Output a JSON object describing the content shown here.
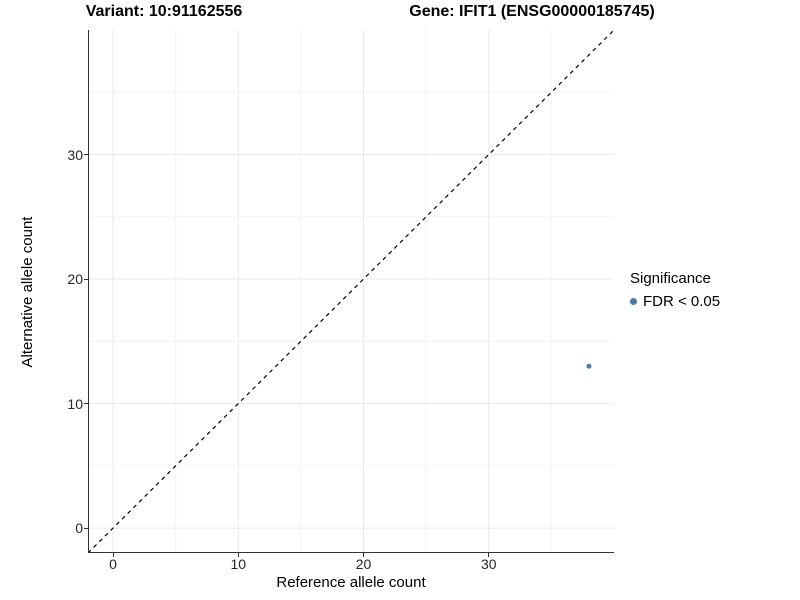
{
  "titles": {
    "left": "Variant: 10:91162556",
    "right": "Gene: IFIT1 (ENSG00000185745)"
  },
  "chart_data": {
    "type": "scatter",
    "title": "Variant: 10:91162556  /  Gene: IFIT1 (ENSG00000185745)",
    "xlabel": "Reference allele count",
    "ylabel": "Alternative allele count",
    "xlim": [
      -2,
      40
    ],
    "ylim": [
      -2,
      40
    ],
    "x_ticks": [
      0,
      10,
      20,
      30
    ],
    "y_ticks": [
      0,
      10,
      20,
      30
    ],
    "x_minor_ticks": [
      5,
      15,
      25,
      35
    ],
    "y_minor_ticks": [
      5,
      15,
      25,
      35
    ],
    "grid": true,
    "points": [
      {
        "x": 38,
        "y": 13,
        "series": "FDR < 0.05",
        "color": "#4e79a7",
        "radius": 2.5
      }
    ],
    "reference_line": {
      "slope": 1,
      "intercept": 0,
      "style": "dashed",
      "color": "#000000"
    },
    "legend": {
      "title": "Significance",
      "position": "right",
      "entries": [
        {
          "label": "FDR < 0.05",
          "color": "#4e79a7"
        }
      ]
    }
  },
  "colors": {
    "axis_line": "#333333",
    "tick_label": "#262626",
    "grid_major": "#e8e8e8",
    "grid_minor": "#f3f3f3",
    "background": "#ffffff",
    "point": "#4e79a7"
  }
}
